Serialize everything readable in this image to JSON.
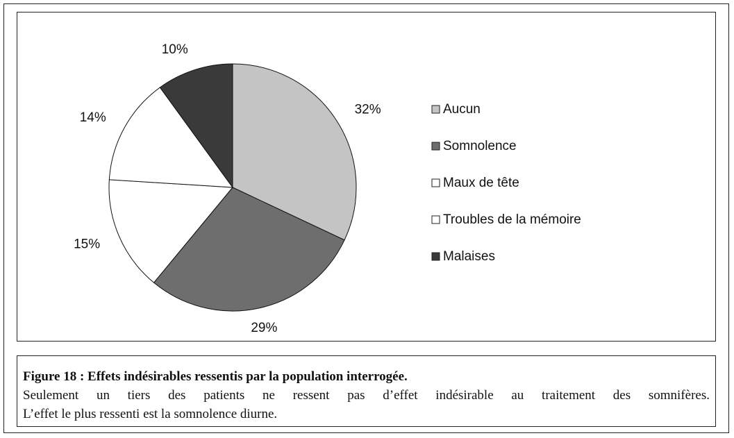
{
  "chart_data": {
    "type": "pie",
    "categories": [
      "Aucun",
      "Somnolence",
      "Maux de tête",
      "Troubles de la mémoire",
      "Malaises"
    ],
    "values": [
      32,
      29,
      15,
      14,
      10
    ],
    "value_labels": [
      "32%",
      "29%",
      "15%",
      "14%",
      "10%"
    ],
    "colors": [
      "#c4c4c4",
      "#6e6e6e",
      "#ffffff",
      "#ffffff",
      "#3a3a3a"
    ],
    "legend": "right"
  },
  "caption": {
    "title": "Figure 18 : Effets indésirables ressentis par la population interrogée.",
    "lines": [
      "Seulement un tiers des patients ne ressent pas d’effet indésirable au traitement des somnifères.",
      "L’effet le plus ressenti est la somnolence diurne."
    ]
  }
}
